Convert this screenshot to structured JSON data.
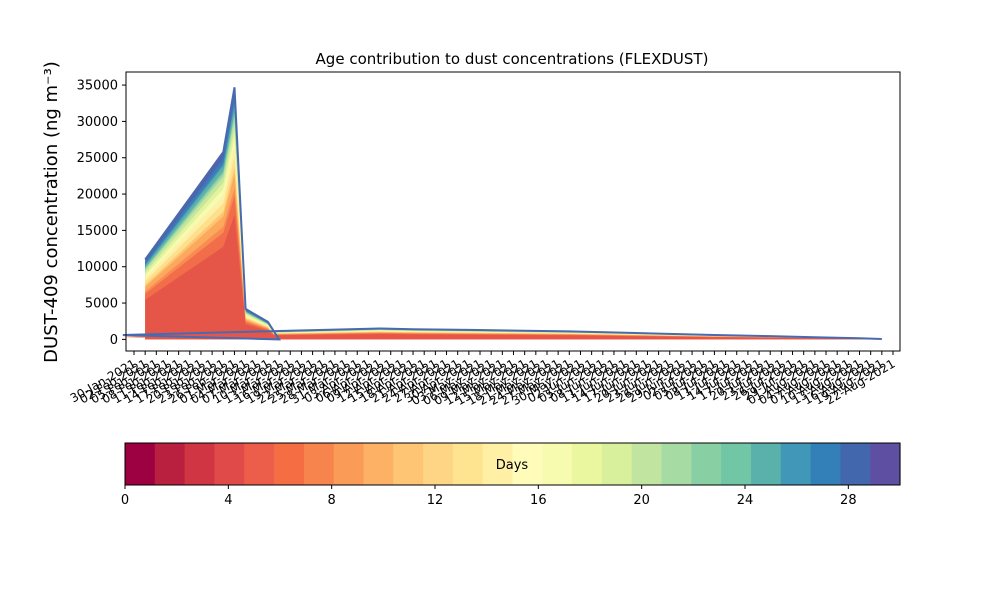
{
  "chart_data": [
    {
      "type": "area",
      "title": "Age contribution to dust concentrations (FLEXDUST)",
      "xlabel": "",
      "ylabel": "DUST-409 concentration (ng m⁻³)",
      "ylim": [
        -1600,
        36800
      ],
      "yticks": [
        0,
        5000,
        10000,
        15000,
        20000,
        25000,
        30000,
        35000
      ],
      "xtick_labels": [
        "30-Jan-2021",
        "22-Aug-2021"
      ],
      "x_dates": [
        "30-Jan-2021",
        "02-Feb-2021",
        "05-Feb-2021",
        "08-Feb-2021",
        "11-Feb-2021",
        "14-Feb-2021",
        "17-Feb-2021",
        "20-Feb-2021",
        "23-Feb-2021",
        "26-Feb-2021",
        "01-Mar-2021",
        "04-Mar-2021",
        "07-Mar-2021",
        "10-Mar-2021",
        "13-Mar-2021",
        "16-Mar-2021",
        "19-Mar-2021",
        "22-Mar-2021",
        "25-Mar-2021",
        "28-Mar-2021",
        "31-Mar-2021",
        "03-Apr-2021",
        "06-Apr-2021",
        "09-Apr-2021",
        "12-Apr-2021",
        "15-Apr-2021",
        "18-Apr-2021",
        "21-Apr-2021",
        "24-Apr-2021",
        "27-Apr-2021",
        "30-Apr-2021",
        "03-May-2021",
        "06-May-2021",
        "09-May-2021",
        "12-May-2021",
        "15-May-2021",
        "18-May-2021",
        "21-May-2021",
        "24-May-2021",
        "27-May-2021",
        "30-May-2021",
        "02-Jun-2021",
        "05-Jun-2021",
        "08-Jun-2021",
        "11-Jun-2021",
        "14-Jun-2021",
        "17-Jun-2021",
        "20-Jun-2021",
        "23-Jun-2021",
        "26-Jun-2021",
        "29-Jun-2021",
        "02-Jul-2021",
        "05-Jul-2021",
        "08-Jul-2021",
        "11-Jul-2021",
        "14-Jul-2021",
        "17-Jul-2021",
        "20-Jul-2021",
        "23-Jul-2021",
        "26-Jul-2021",
        "29-Jul-2021",
        "01-Aug-2021",
        "04-Aug-2021",
        "07-Aug-2021",
        "10-Aug-2021",
        "13-Aug-2021",
        "16-Aug-2021",
        "19-Aug-2021",
        "22-Aug-2021"
      ],
      "points": [
        {
          "x": "02-Feb-2021",
          "y": 11000
        },
        {
          "x": "23-Feb-2021",
          "y": 25800
        },
        {
          "x": "26-Feb-2021",
          "y": 34700
        },
        {
          "x": "01-Mar-2021",
          "y": 4200
        },
        {
          "x": "07-Mar-2021",
          "y": 2400
        },
        {
          "x": "10-Mar-2021",
          "y": 0
        },
        {
          "x": "20-Mar-2021",
          "y": 600
        },
        {
          "x": "06-Apr-2021",
          "y": 1500
        },
        {
          "x": "15-Apr-2021",
          "y": 1400
        },
        {
          "x": "30-Apr-2021",
          "y": 1300
        },
        {
          "x": "27-May-2021",
          "y": 1100
        },
        {
          "x": "20-Jun-2021",
          "y": 800
        },
        {
          "x": "05-Jul-2021",
          "y": 600
        },
        {
          "x": "20-Jul-2021",
          "y": 450
        },
        {
          "x": "01-Aug-2021",
          "y": 300
        },
        {
          "x": "13-Aug-2021",
          "y": 150
        },
        {
          "x": "19-Aug-2021",
          "y": 50
        }
      ],
      "bands": [
        {
          "age_days": 30,
          "color": "#5e4fa2"
        },
        {
          "age_days": 29,
          "color": "#4d65ae"
        },
        {
          "age_days": 27,
          "color": "#3d7ab8"
        },
        {
          "age_days": 25,
          "color": "#3f96b7"
        },
        {
          "age_days": 24,
          "color": "#5db0ab"
        },
        {
          "age_days": 22,
          "color": "#84cba5"
        },
        {
          "age_days": 21,
          "color": "#a4d9a4"
        },
        {
          "age_days": 20,
          "color": "#c4e69f"
        },
        {
          "age_days": 18,
          "color": "#e2f39b"
        },
        {
          "age_days": 16,
          "color": "#f5fbb0"
        },
        {
          "age_days": 14,
          "color": "#fff0a8"
        },
        {
          "age_days": 12,
          "color": "#fedf8b"
        },
        {
          "age_days": 10,
          "color": "#fdc574"
        },
        {
          "age_days": 9,
          "color": "#fca95d"
        },
        {
          "age_days": 7,
          "color": "#f98c52"
        },
        {
          "age_days": 6,
          "color": "#f26d4a"
        },
        {
          "age_days": 4,
          "color": "#e55649"
        }
      ],
      "line_color": "#4a6aaf"
    },
    {
      "type": "colorbar",
      "label": "Days",
      "range": [
        0,
        30
      ],
      "ticks": [
        0,
        4,
        8,
        12,
        16,
        20,
        24,
        28
      ],
      "colors": [
        "#9e0142",
        "#b9203f",
        "#cf3542",
        "#e04b49",
        "#ec5e49",
        "#f46d43",
        "#f7834d",
        "#fa9b58",
        "#fcb165",
        "#fdc574",
        "#fed585",
        "#fee391",
        "#fff0a6",
        "#fffcba",
        "#f6fbb0",
        "#eaf79e",
        "#d8ef9b",
        "#c1e5a0",
        "#a6dba4",
        "#88cfa4",
        "#70c6a5",
        "#5ab0ab",
        "#4197b8",
        "#3380b9",
        "#4367ad",
        "#5e4fa2"
      ]
    }
  ]
}
